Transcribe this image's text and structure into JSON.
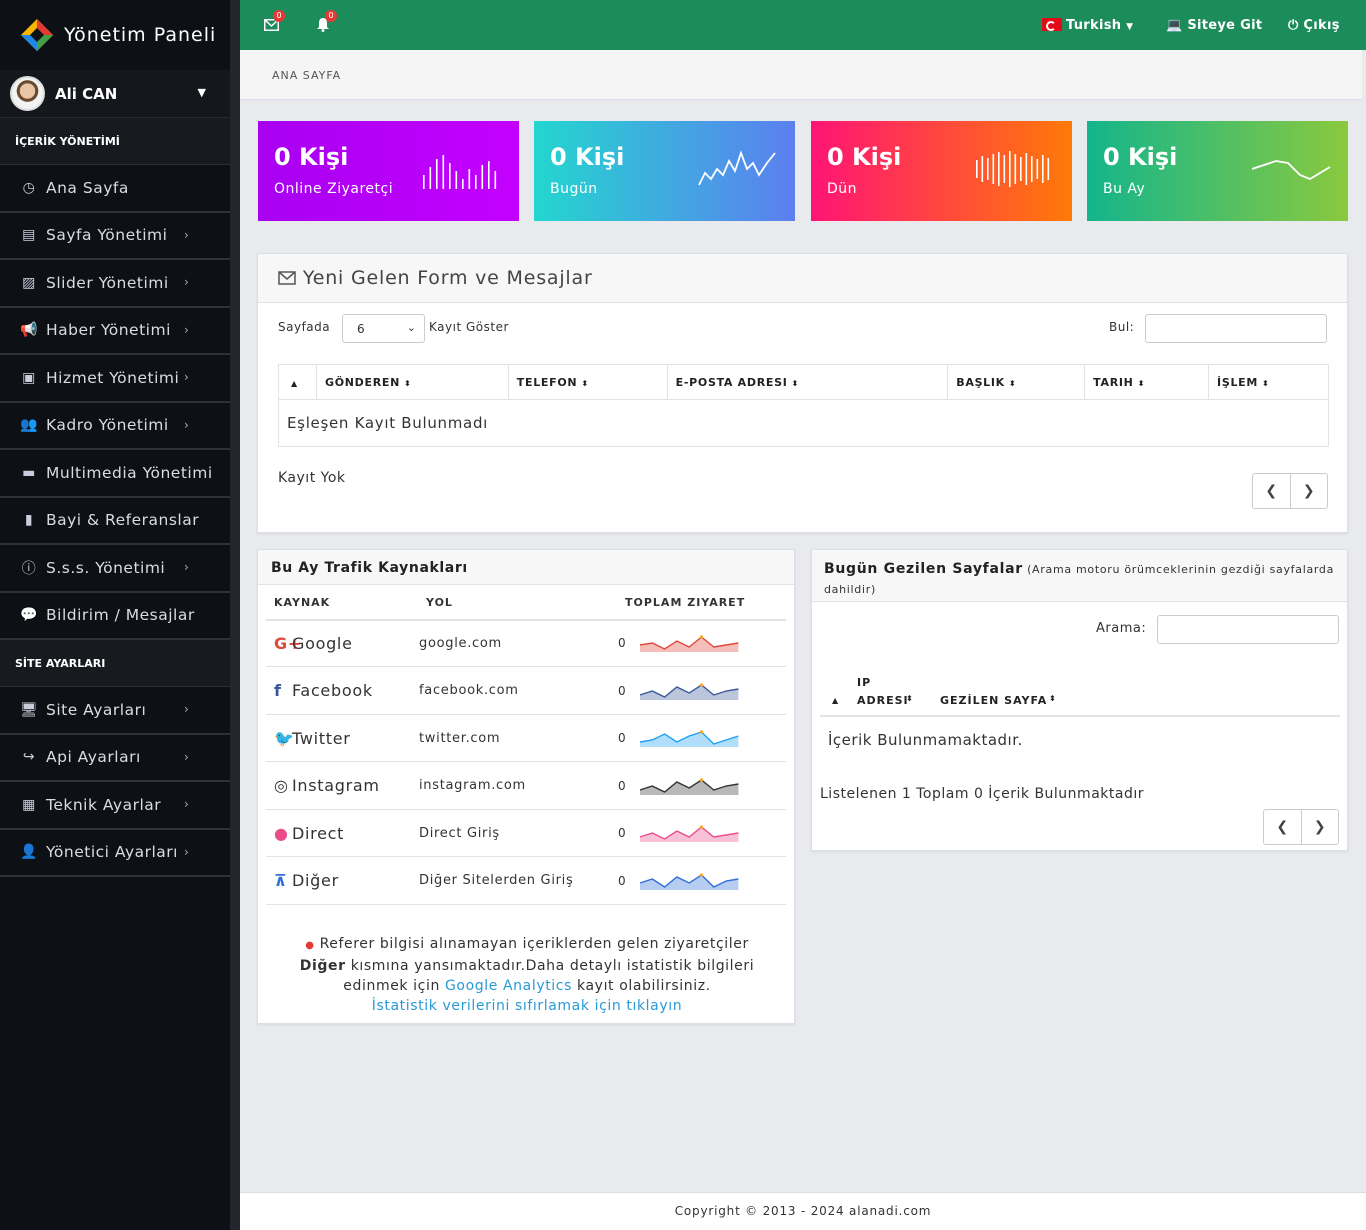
{
  "sidebar": {
    "logo": "Yönetim Paneli",
    "user": "Ali CAN",
    "section1": "İÇERİK YÖNETİMİ",
    "items1": [
      {
        "label": "Ana Sayfa",
        "icon": "dashboard-icon"
      },
      {
        "label": "Sayfa Yönetimi",
        "icon": "book-icon"
      },
      {
        "label": "Slider Yönetimi",
        "icon": "image-icon"
      },
      {
        "label": "Haber Yönetimi",
        "icon": "bullhorn-icon"
      },
      {
        "label": "Hizmet Yönetimi",
        "icon": "briefcase-icon"
      },
      {
        "label": "Kadro Yönetimi",
        "icon": "users-icon"
      },
      {
        "label": "Multimedia Yönetimi",
        "icon": "folder-icon"
      },
      {
        "label": "Bayi & Referanslar",
        "icon": "bookmark-icon"
      },
      {
        "label": "S.s.s. Yönetimi",
        "icon": "info-icon"
      },
      {
        "label": "Bildirim / Mesajlar",
        "icon": "comments-icon"
      }
    ],
    "section2": "SİTE AYARLARI",
    "items2": [
      {
        "label": "Site Ayarları",
        "icon": "desktop-icon"
      },
      {
        "label": "Api Ayarları",
        "icon": "share-icon"
      },
      {
        "label": "Teknik Ayarlar",
        "icon": "table-icon"
      },
      {
        "label": "Yönetici Ayarları",
        "icon": "user-icon"
      }
    ]
  },
  "topbar": {
    "mail_count": "0",
    "bell_count": "0",
    "language": "Turkish",
    "site_link": "Siteye Git",
    "logout": "Çıkış"
  },
  "breadcrumb": "ANA SAYFA",
  "stats": [
    {
      "value": "0 Kişi",
      "label": "Online Ziyaretçi",
      "from": "#a800f0",
      "to": "#c400ff"
    },
    {
      "value": "0 Kişi",
      "label": "Bugün",
      "from": "#23d6cf",
      "to": "#5c7ff0"
    },
    {
      "value": "0 Kişi",
      "label": "Dün",
      "from": "#ff1475",
      "to": "#ff7a07"
    },
    {
      "value": "0 Kişi",
      "label": "Bu Ay",
      "from": "#13b58c",
      "to": "#8ac93e"
    }
  ],
  "forms": {
    "title": "Yeni Gelen Form ve Mesajlar",
    "show_prefix": "Sayfada",
    "page_size": "6",
    "show_suffix": "Kayıt Göster",
    "search_label": "Bul:",
    "columns": [
      "",
      "GÖNDEREN",
      "TELEFON",
      "E-POSTA ADRESI",
      "BAŞLIK",
      "TARIH",
      "İŞLEM"
    ],
    "empty": "Eşleşen Kayıt Bulunmadı",
    "info": "Kayıt Yok"
  },
  "traffic": {
    "title": "Bu Ay Trafik Kaynakları",
    "columns": [
      "KAYNAK",
      "YOL",
      "TOPLAM ZIYARET"
    ],
    "rows": [
      {
        "name": "Google",
        "path": "google.com",
        "count": "0",
        "icon": "google-plus-icon",
        "symbol": "G+",
        "color": "#e0483b"
      },
      {
        "name": "Facebook",
        "path": "facebook.com",
        "count": "0",
        "icon": "facebook-icon",
        "symbol": "f",
        "color": "#3b5998"
      },
      {
        "name": "Twitter",
        "path": "twitter.com",
        "count": "0",
        "icon": "twitter-icon",
        "symbol": "🐦",
        "color": "#1da1f2"
      },
      {
        "name": "Instagram",
        "path": "instagram.com",
        "count": "0",
        "icon": "instagram-icon",
        "symbol": "◎",
        "color": "#333333"
      },
      {
        "name": "Direct",
        "path": "Direct Giriş",
        "count": "0",
        "icon": "dribbble-icon",
        "symbol": "●",
        "color": "#ea4c89"
      },
      {
        "name": "Diğer",
        "path": "Diğer Sitelerden Giriş",
        "count": "0",
        "icon": "sitemap-icon",
        "symbol": "⊼",
        "color": "#2f6fd6"
      }
    ],
    "note_1": "Referer bilgisi alınamayan içeriklerden gelen ziyaretçiler",
    "note_bold": "Diğer",
    "note_2": "kısmına yansımaktadır.Daha detaylı istatistik bilgileri",
    "note_3": "edinmek için",
    "note_link": "Google Analytics",
    "note_4": "kayıt olabilirsiniz.",
    "reset_link": "İstatistik verilerini sıfırlamak için tıklayın"
  },
  "pages": {
    "title": "Bugün Gezilen Sayfalar",
    "subtitle": "(Arama motoru örümceklerinin gezdiği sayfalarda dahildir)",
    "search_label": "Arama:",
    "col_ip_1": "IP",
    "col_ip_2": "ADRESI",
    "col_page": "GEZİLEN SAYFA",
    "empty": "İçerik Bulunmamaktadır.",
    "info": "Listelenen 1 Toplam 0 İçerik Bulunmaktadır"
  },
  "footer": "Copyright © 2013 - 2024 alanadi.com"
}
